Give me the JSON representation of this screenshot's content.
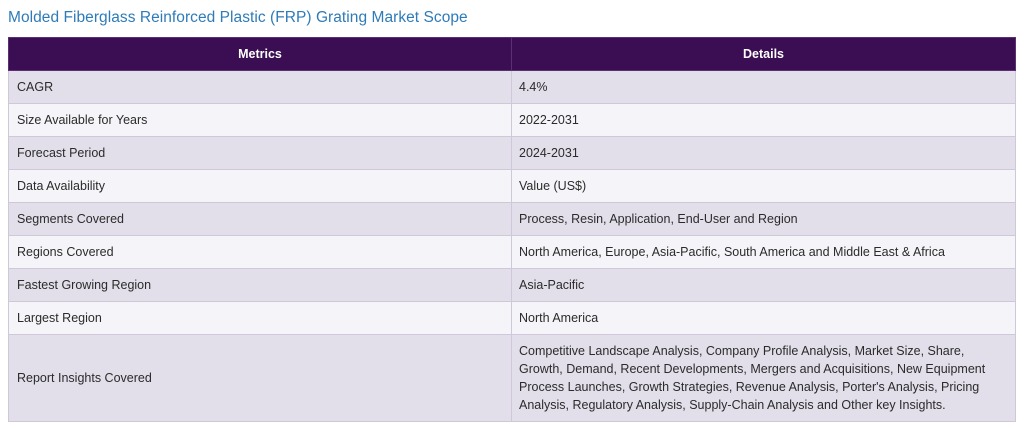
{
  "title": "Molded Fiberglass Reinforced Plastic (FRP) Grating Market Scope",
  "table": {
    "headers": [
      "Metrics",
      "Details"
    ],
    "rows": [
      [
        "CAGR",
        "4.4%"
      ],
      [
        "Size Available for Years",
        "2022-2031"
      ],
      [
        "Forecast Period",
        "2024-2031"
      ],
      [
        "Data Availability",
        "Value (US$)"
      ],
      [
        "Segments Covered",
        "Process, Resin, Application, End-User and Region"
      ],
      [
        "Regions Covered",
        "North America, Europe, Asia-Pacific, South America and Middle East & Africa"
      ],
      [
        "Fastest Growing Region",
        "Asia-Pacific"
      ],
      [
        "Largest Region",
        "North America"
      ],
      [
        "Report Insights Covered",
        "Competitive Landscape Analysis, Company Profile Analysis, Market Size, Share, Growth, Demand, Recent Developments, Mergers and Acquisitions, New Equipment Process Launches, Growth Strategies, Revenue Analysis, Porter's Analysis, Pricing Analysis, Regulatory Analysis, Supply-Chain Analysis and Other key Insights."
      ]
    ]
  },
  "colors": {
    "title": "#2e7bb8",
    "header_bg": "#3b0d52",
    "row_odd": "#e2dfea",
    "row_even": "#f5f4f8"
  }
}
